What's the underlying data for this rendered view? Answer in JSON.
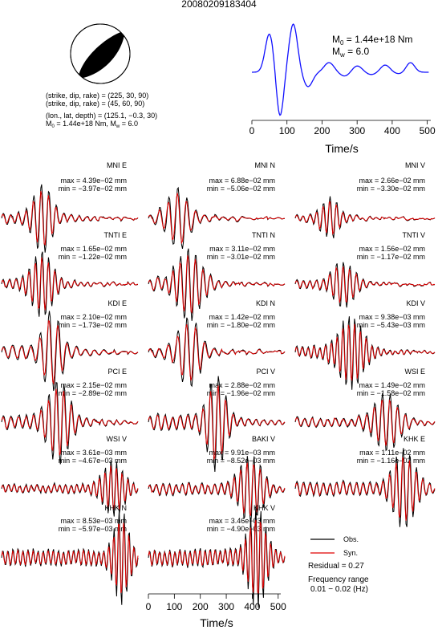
{
  "page_title": "20080209183404",
  "mechanism": {
    "plane1": "(strike, dip, rake) = (225, 30, 90)",
    "plane2": "(strike, dip, rake) = (45, 60, 90)",
    "location": "(lon., lat, depth) = (125.1, −0.3, 30)",
    "moment_line_prefix_m": "M",
    "moment_line_sub0": "0",
    "moment_line_value": " = 1.44e+18 Nm, M",
    "moment_line_sub_w": "w",
    "moment_line_mw": " = 6.0"
  },
  "stf": {
    "m0_label": "M",
    "m0_sub": "0",
    "m0_value": " = 1.44e+18 Nm",
    "mw_label": "M",
    "mw_sub": "w",
    "mw_value": " = 6.0",
    "xlabel": "Time/s",
    "xticks": [
      "0",
      "100",
      "200",
      "300",
      "400",
      "500"
    ],
    "color": "#1010ff"
  },
  "bottom_axis": {
    "xlabel": "Time/s",
    "xticks": [
      "0",
      "100",
      "200",
      "300",
      "400",
      "500"
    ]
  },
  "legend": {
    "obs_label": "Obs.",
    "syn_label": "Syn.",
    "obs_color": "#000000",
    "syn_color": "#e00000",
    "residual": "Residual = 0.27",
    "freq_title": "Frequency range",
    "freq_value": "0.01 − 0.02 (Hz)"
  },
  "chart_data": {
    "type": "line",
    "title": "20080209183404",
    "source_time_function": {
      "x_range": [
        0,
        510
      ],
      "x_unit": "s",
      "peaks_s": [
        50,
        118,
        220,
        300,
        380,
        452
      ],
      "troughs_s": [
        80,
        175
      ]
    },
    "stations": [
      {
        "name": "MNI E",
        "max": "max = 4.39e−02 mm",
        "min": "min = −3.97e−02 mm"
      },
      {
        "name": "MNI N",
        "max": "max = 6.88e−02 mm",
        "min": "min = −5.06e−02 mm"
      },
      {
        "name": "MNI V",
        "max": "max = 2.66e−02 mm",
        "min": "min = −3.30e−02 mm"
      },
      {
        "name": "TNTI E",
        "max": "max = 1.65e−02 mm",
        "min": "min = −1.22e−02 mm"
      },
      {
        "name": "TNTI N",
        "max": "max = 3.11e−02 mm",
        "min": "min = −3.01e−02 mm"
      },
      {
        "name": "TNTI V",
        "max": "max = 1.56e−02 mm",
        "min": "min = −1.17e−02 mm"
      },
      {
        "name": "KDI E",
        "max": "max = 2.10e−02 mm",
        "min": "min = −1.73e−02 mm"
      },
      {
        "name": "KDI N",
        "max": "max = 1.42e−02 mm",
        "min": "min = −1.80e−02 mm"
      },
      {
        "name": "KDI V",
        "max": "max = 9.38e−03 mm",
        "min": "min = −5.43e−03 mm"
      },
      {
        "name": "PCI E",
        "max": "max = 2.15e−02 mm",
        "min": "min = −2.89e−02 mm"
      },
      {
        "name": "PCI V",
        "max": "max = 2.88e−02 mm",
        "min": "min = −1.96e−02 mm"
      },
      {
        "name": "WSI E",
        "max": "max = 1.49e−02 mm",
        "min": "min = −1.58e−02 mm"
      },
      {
        "name": "WSI V",
        "max": "max = 3.61e−03 mm",
        "min": "min = −4.67e−03 mm"
      },
      {
        "name": "BAKI V",
        "max": "max = 9.91e−03 mm",
        "min": "min = −8.52e−03 mm"
      },
      {
        "name": "KHK E",
        "max": "max = 1.11e−02 mm",
        "min": "min = −1.16e−02 mm"
      },
      {
        "name": "KHK N",
        "max": "max = 8.53e−03 mm",
        "min": "min = −5.97e−03 mm"
      },
      {
        "name": "KHK V",
        "max": "max = 3.46e−03 mm",
        "min": "min = −4.90e−03 mm"
      }
    ],
    "series": [
      {
        "name": "Obs.",
        "color": "#000000"
      },
      {
        "name": "Syn.",
        "color": "#e00000"
      }
    ],
    "residual": 0.27,
    "frequency_range_hz": [
      0.01,
      0.02
    ],
    "time_axis": {
      "xlim": [
        0,
        510
      ],
      "ticks": [
        0,
        100,
        200,
        300,
        400,
        500
      ]
    }
  }
}
